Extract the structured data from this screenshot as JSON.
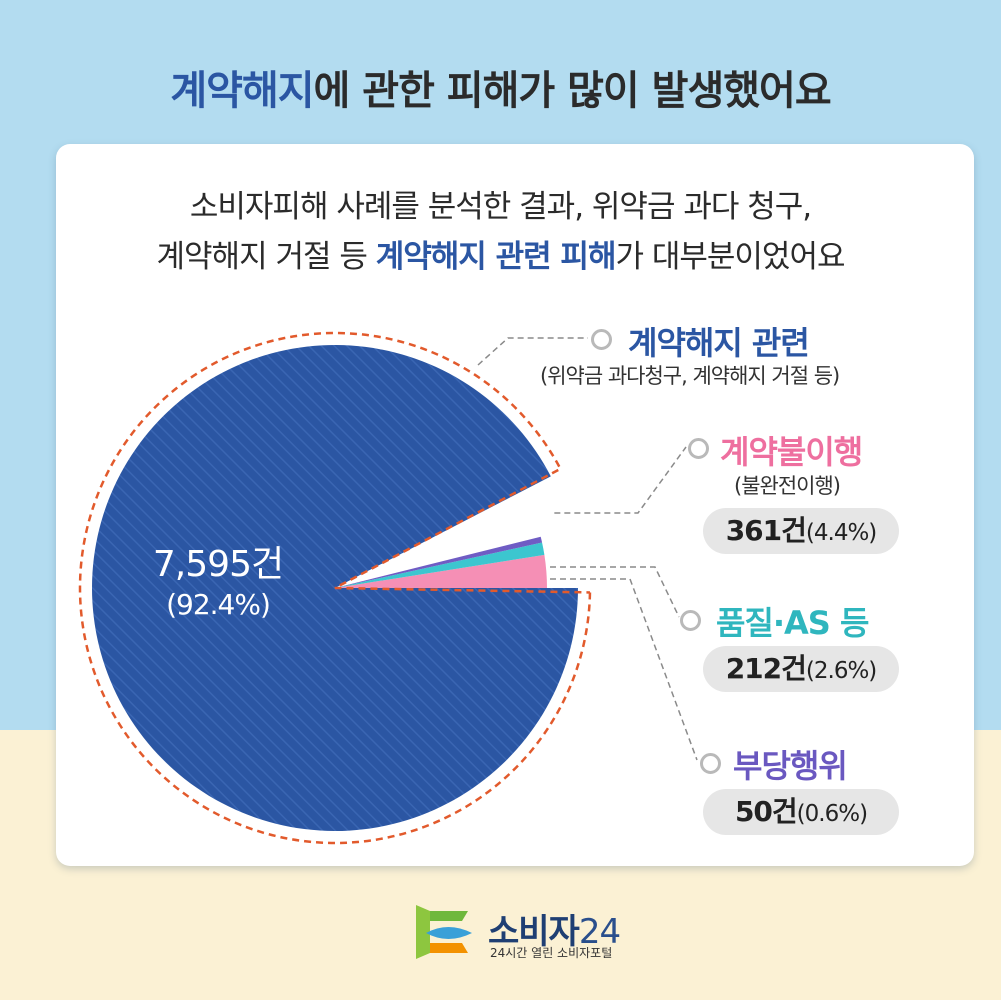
{
  "header": {
    "title_highlight": "계약해지",
    "title_rest": "에 관한 피해가 많이 발생했어요"
  },
  "summary": {
    "line1": "소비자피해 사례를 분석한 결과, 위약금 과다 청구,",
    "line2_pre": "계약해지 거절 등 ",
    "line2_highlight": "계약해지 관련 피해",
    "line2_post": "가 대부분이었어요"
  },
  "chart_data": {
    "type": "pie",
    "title": "",
    "slices": [
      {
        "label": "계약해지 관련",
        "sublabel": "(위약금 과다청구, 계약해지 거절 등)",
        "count": 7595,
        "count_label": "7,595건",
        "percent": 92.4,
        "percent_label": "(92.4%)",
        "color": "#2b56a3"
      },
      {
        "label": "계약불이행",
        "sublabel": "(불완전이행)",
        "count": 361,
        "count_label": "361건",
        "percent": 4.4,
        "percent_label": "(4.4%)",
        "color": "#f58fb5"
      },
      {
        "label": "품질·AS 등",
        "sublabel": "",
        "count": 212,
        "count_label": "212건",
        "percent": 2.6,
        "percent_label": "(2.6%)",
        "color": "#3cc6cf"
      },
      {
        "label": "부당행위",
        "sublabel": "",
        "count": 50,
        "count_label": "50건",
        "percent": 0.6,
        "percent_label": "(0.6%)",
        "color": "#6f5cc4"
      }
    ],
    "legend_title_colors": [
      "#2b56a3",
      "#ee6f9f",
      "#2fb6be",
      "#6a58c0"
    ],
    "highlight_outline_color": "#e25a2c"
  },
  "footer": {
    "logo_name": "소비자",
    "logo_number": "24",
    "logo_tagline": "24시간 열린 소비자포털"
  },
  "icons": {
    "legend_marker": "circle-marker-icon",
    "logo": "consumer24-logo-icon"
  }
}
